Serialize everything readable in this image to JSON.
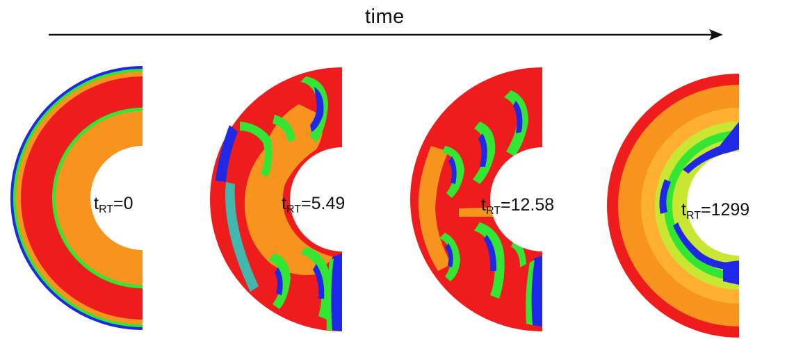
{
  "axis": {
    "label": "time"
  },
  "colors": {
    "orange": "#f7941d",
    "red": "#ee1c1c",
    "green": "#33e633",
    "blue": "#1e28e6",
    "cyan": "#22d4c8",
    "light_orange": "#ffb030",
    "yellow_green": "#c8e632",
    "arrow": "#111111"
  },
  "panels": [
    {
      "t": "t",
      "sub": "RT",
      "eq": "=0"
    },
    {
      "t": "t",
      "sub": "RT",
      "eq": "=5.49"
    },
    {
      "t": "t",
      "sub": "RT",
      "eq": "=12.58"
    },
    {
      "t": "t",
      "sub": "RT",
      "eq": "=1299"
    }
  ]
}
